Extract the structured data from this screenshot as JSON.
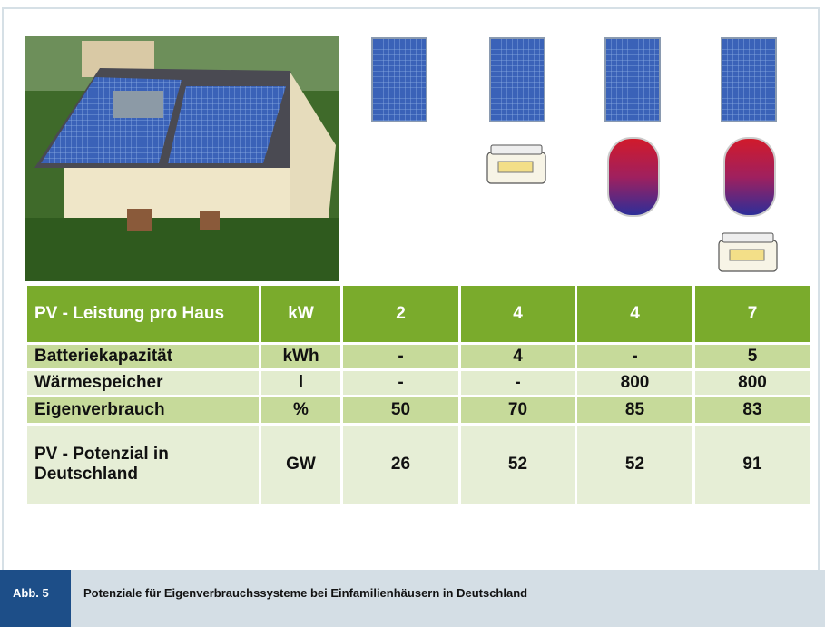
{
  "table": {
    "rows": [
      [
        "PV - Leistung pro Haus",
        "kW",
        "2",
        "4",
        "4",
        "7"
      ],
      [
        "Batteriekapazität",
        "kWh",
        "-",
        "4",
        "-",
        "5"
      ],
      [
        "Wärmespeicher",
        "l",
        "-",
        "-",
        "800",
        "800"
      ],
      [
        "Eigenverbrauch",
        "%",
        "50",
        "70",
        "85",
        "83"
      ],
      [
        "PV - Potenzial in Deutschland",
        "GW",
        "26",
        "52",
        "52",
        "91"
      ]
    ]
  },
  "caption": {
    "label": "Abb. 5",
    "text": "Potenziale für Eigenverbrauchssysteme bei Einfamilienhäusern in Deutschland"
  }
}
